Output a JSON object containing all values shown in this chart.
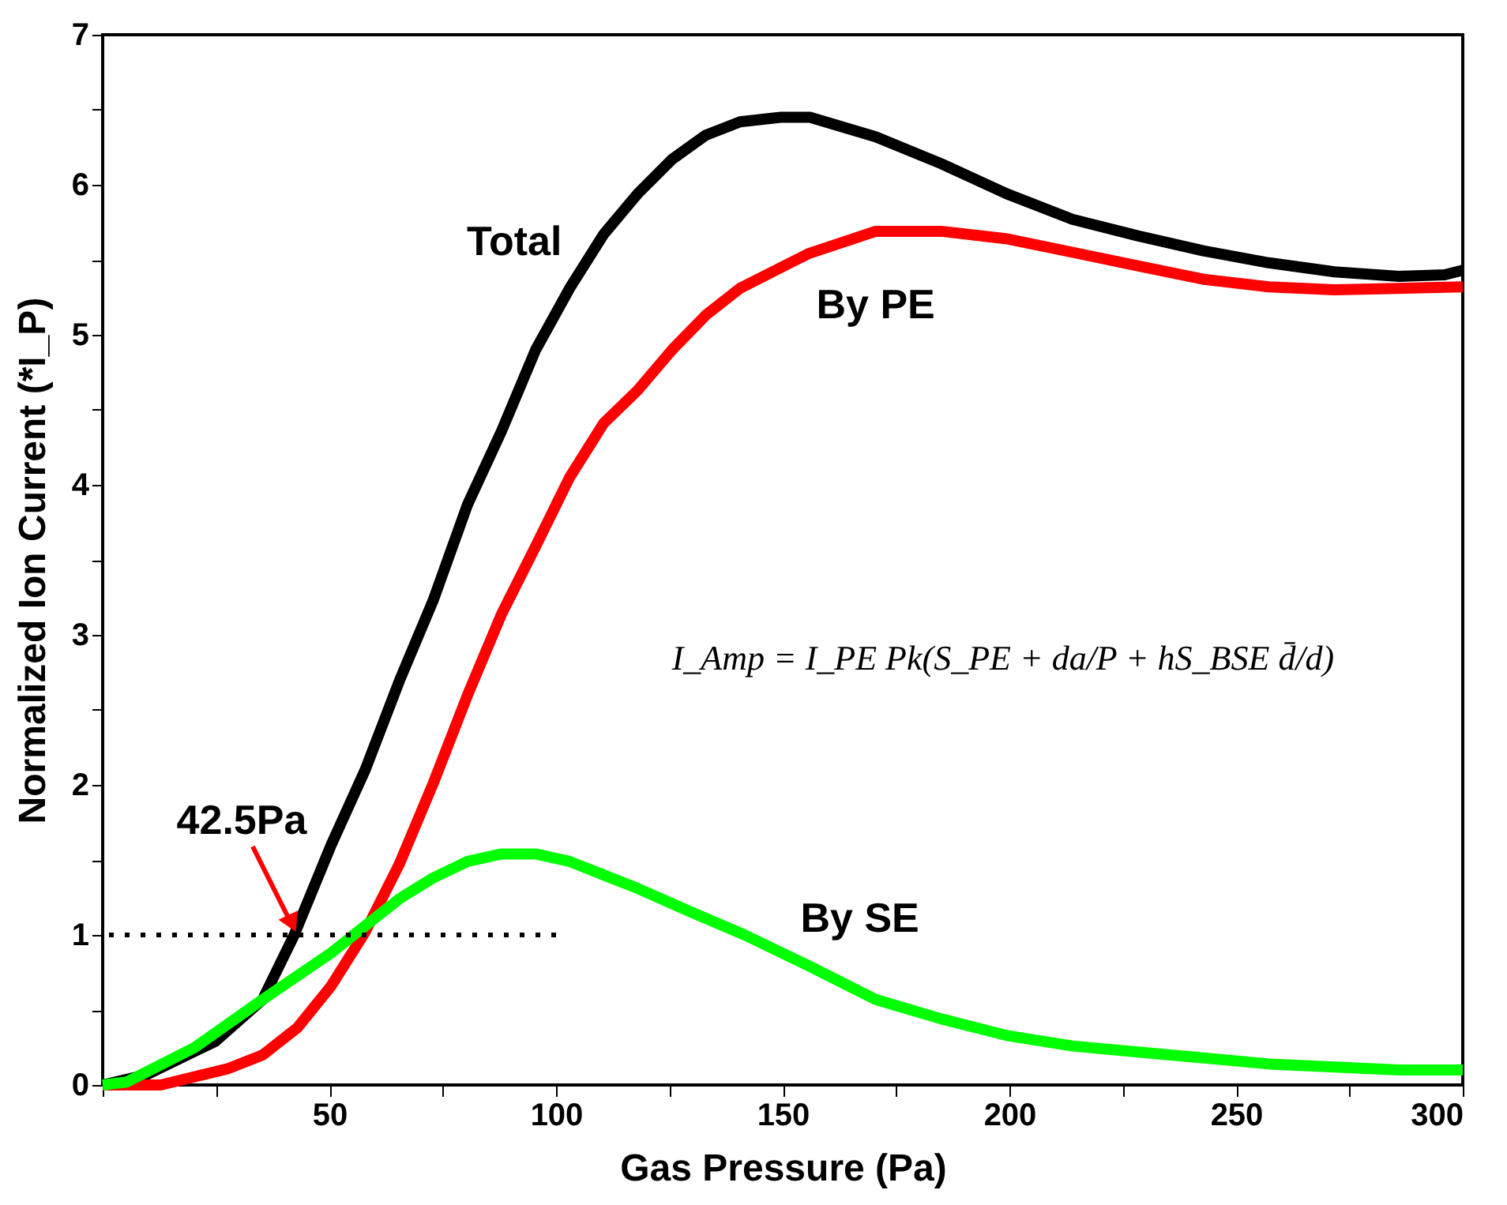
{
  "chart_data": {
    "type": "line",
    "xlabel": "Gas Pressure (Pa)",
    "ylabel": "Normalized Ion Current (*I_P)",
    "xlim": [
      0,
      300
    ],
    "xticks": [
      {
        "value": 0,
        "label": null
      },
      {
        "value": 25,
        "label": null
      },
      50,
      {
        "value": 75,
        "label": null
      },
      100,
      {
        "value": 125,
        "label": null
      },
      150,
      {
        "value": 175,
        "label": null
      },
      200,
      {
        "value": 225,
        "label": null
      },
      250,
      {
        "value": 275,
        "label": null
      },
      300
    ],
    "ylim": [
      0,
      7
    ],
    "yticks": [
      0,
      {
        "value": 0.5,
        "label": null
      },
      1,
      {
        "value": 1.5,
        "label": null
      },
      2,
      {
        "value": 2.5,
        "label": null
      },
      3,
      {
        "value": 3.5,
        "label": null
      },
      4,
      {
        "value": 4.5,
        "label": null
      },
      5,
      {
        "value": 5.5,
        "label": null
      },
      6,
      {
        "value": 6.5,
        "label": null
      },
      7
    ],
    "grid": false,
    "marker": "none",
    "series": [
      {
        "name": "Total",
        "color": "#000000",
        "line_style": "solid",
        "x": [
          0,
          9.8,
          24.8,
          35.3,
          42.1,
          50.4,
          57.9,
          65.4,
          72.9,
          80.5,
          88,
          95.5,
          103,
          110.5,
          118,
          125.6,
          133,
          140.6,
          149.6,
          156,
          170.5,
          185,
          199.4,
          213.9,
          228.3,
          242.8,
          257.2,
          271.7,
          286,
          296,
          300
        ],
        "values": [
          0,
          0.07,
          0.29,
          0.57,
          0.99,
          1.6,
          2.1,
          2.69,
          3.23,
          3.87,
          4.36,
          4.9,
          5.31,
          5.67,
          5.94,
          6.17,
          6.33,
          6.42,
          6.45,
          6.45,
          6.32,
          6.14,
          5.94,
          5.77,
          5.66,
          5.56,
          5.48,
          5.42,
          5.39,
          5.4,
          5.43
        ]
      },
      {
        "name": "By PE",
        "color": "#ff0000",
        "line_style": "solid",
        "x": [
          0,
          12.8,
          27.8,
          35.3,
          42.9,
          50.4,
          57.9,
          65.4,
          72.9,
          80.5,
          88,
          95.5,
          103,
          110.5,
          118,
          125.6,
          133,
          140.6,
          155.6,
          170.5,
          185,
          199.4,
          213.9,
          228.3,
          242.8,
          257.2,
          271.7,
          300
        ],
        "values": [
          0,
          0,
          0.11,
          0.2,
          0.38,
          0.66,
          1.02,
          1.47,
          2.01,
          2.6,
          3.14,
          3.59,
          4.05,
          4.41,
          4.63,
          4.9,
          5.13,
          5.31,
          5.54,
          5.69,
          5.69,
          5.64,
          5.55,
          5.46,
          5.37,
          5.32,
          5.3,
          5.32
        ]
      },
      {
        "name": "By SE",
        "color": "#00ff00",
        "line_style": "solid",
        "x": [
          0,
          5.3,
          20.3,
          35.3,
          50.4,
          57.9,
          65.4,
          72.9,
          80.5,
          88,
          95.5,
          103,
          118,
          130,
          141.6,
          156,
          170.5,
          185,
          199.4,
          213.9,
          228.3,
          242.8,
          257.2,
          271.7,
          286,
          300
        ],
        "values": [
          0,
          0.02,
          0.25,
          0.57,
          0.88,
          1.06,
          1.24,
          1.38,
          1.49,
          1.54,
          1.54,
          1.49,
          1.31,
          1.15,
          1.0,
          0.79,
          0.57,
          0.44,
          0.33,
          0.26,
          0.22,
          0.18,
          0.14,
          0.12,
          0.1,
          0.1
        ]
      },
      {
        "color": "#000000",
        "line_style": "dotted",
        "x": [
          0,
          100
        ],
        "values": [
          1,
          1
        ]
      }
    ],
    "annotations": [
      {
        "text": "42.5Pa",
        "x": 42.5,
        "y": 1
      },
      "I_Amp = I_PE Pk(S_PE + da/P + hS_BSE d̄/d)"
    ]
  }
}
